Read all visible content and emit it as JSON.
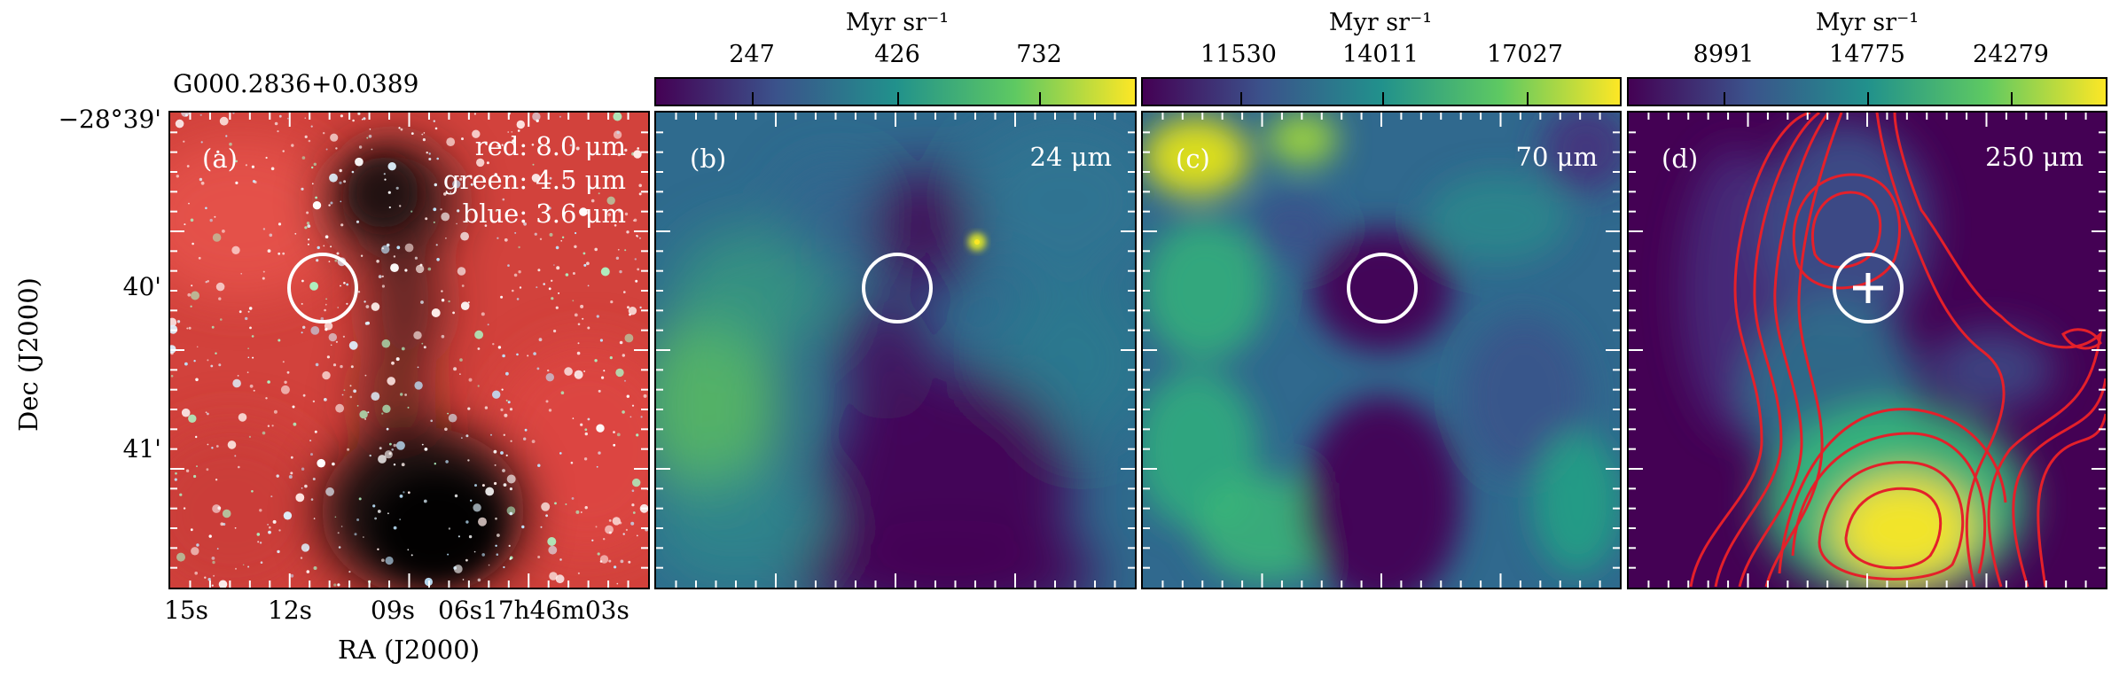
{
  "source_name": "G000.2836+0.0389",
  "axes": {
    "xlabel": "RA (J2000)",
    "ylabel": "Dec (J2000)",
    "ra_ticks": [
      "15s",
      "12s",
      "09s",
      "06s17h46m03s"
    ],
    "dec_ticks": [
      "−28°39'",
      "40'",
      "41'"
    ]
  },
  "panels": [
    {
      "id": "a",
      "label": "(a)",
      "legend": [
        "red: 8.0 μm",
        "green: 4.5 μm",
        "blue: 3.6 μm"
      ],
      "colors": {
        "red": "#e8483e",
        "green": "#2ee86a",
        "blue": "#9fd8ff"
      }
    },
    {
      "id": "b",
      "label": "(b)",
      "wavelength": "24 μm",
      "colorbar": {
        "unit": "Myr sr⁻¹",
        "ticks": [
          247,
          426,
          732
        ]
      }
    },
    {
      "id": "c",
      "label": "(c)",
      "wavelength": "70 μm",
      "colorbar": {
        "unit": "Myr sr⁻¹",
        "ticks": [
          11530,
          14011,
          17027
        ]
      }
    },
    {
      "id": "d",
      "label": "(d)",
      "wavelength": "250 μm",
      "colorbar": {
        "unit": "Myr sr⁻¹",
        "ticks": [
          8991,
          14775,
          24279
        ]
      },
      "contour_color": "#e4202a"
    }
  ],
  "colormap": "viridis",
  "viridis_stops": [
    "#440154",
    "#3b528b",
    "#21918c",
    "#5ec962",
    "#fde725"
  ]
}
